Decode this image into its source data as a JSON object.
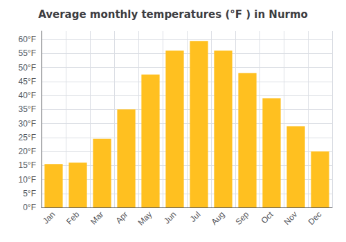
{
  "chart_data": {
    "type": "bar",
    "title": "Average monthly temperatures (°F ) in Nurmo",
    "categories": [
      "Jan",
      "Feb",
      "Mar",
      "Apr",
      "May",
      "Jun",
      "Jul",
      "Aug",
      "Sep",
      "Oct",
      "Nov",
      "Dec"
    ],
    "values": [
      15.5,
      16.0,
      24.5,
      35.0,
      47.5,
      56.0,
      59.5,
      56.0,
      48.0,
      39.0,
      29.0,
      20.0
    ],
    "color": "#FFC020",
    "ylim": [
      0,
      63
    ],
    "yticks": [
      {
        "value": 0,
        "label": "0°F"
      },
      {
        "value": 5,
        "label": "5°F"
      },
      {
        "value": 10,
        "label": "10°F"
      },
      {
        "value": 15,
        "label": "15°F"
      },
      {
        "value": 20,
        "label": "20°F"
      },
      {
        "value": 25,
        "label": "25°F"
      },
      {
        "value": 30,
        "label": "30°F"
      },
      {
        "value": 35,
        "label": "35°F"
      },
      {
        "value": 40,
        "label": "40°F"
      },
      {
        "value": 45,
        "label": "45°F"
      },
      {
        "value": 50,
        "label": "50°F"
      },
      {
        "value": 55,
        "label": "55°F"
      },
      {
        "value": 60,
        "label": "60°F"
      }
    ],
    "grid": true
  }
}
